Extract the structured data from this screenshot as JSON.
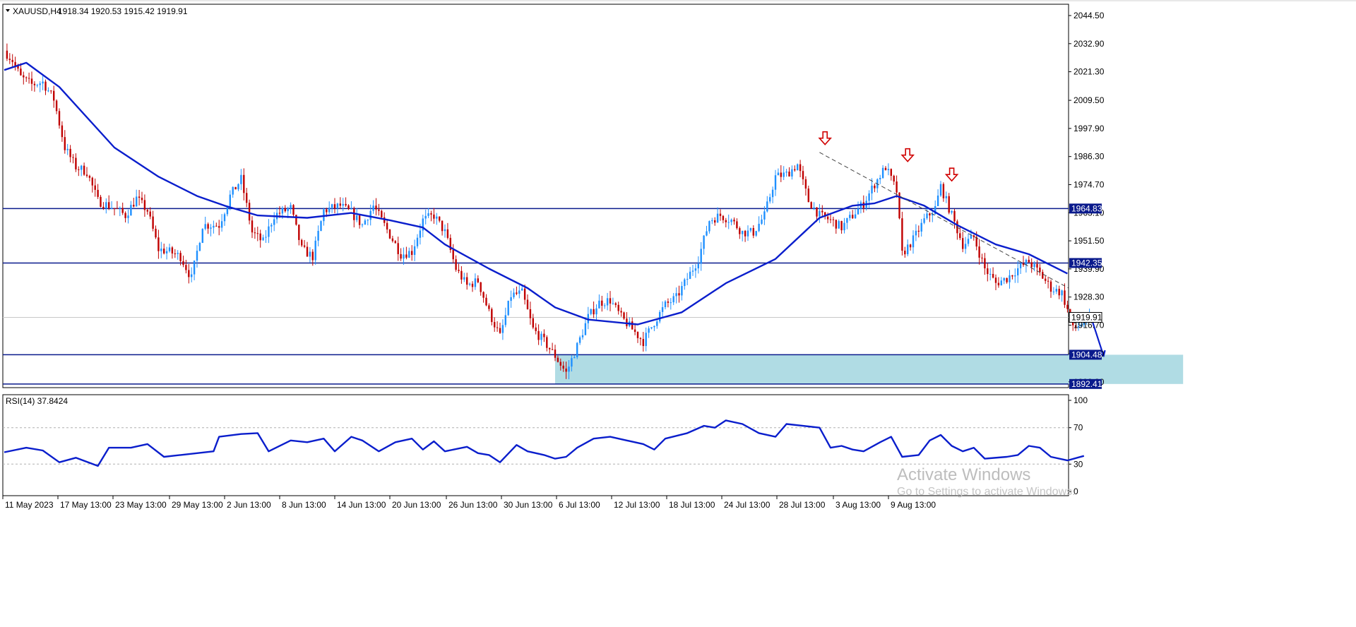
{
  "header": {
    "symbol": "XAUUSD,H4",
    "ohlc": "1918.34 1920.53 1915.42 1919.91"
  },
  "indicator": {
    "label": "RSI(14) 37.8424"
  },
  "watermark": {
    "line1": "Activate Windows",
    "line2": "Go to Settings to activate Windows."
  },
  "colors": {
    "bull": "#1e90ff",
    "bear": "#c00000",
    "ma": "#0a1ecc",
    "level": "#0a1a8c",
    "zone": "#b0dce4",
    "arrow": "#d00000",
    "trend": "#444444"
  },
  "chart_data": [
    {
      "type": "candlestick",
      "symbol": "XAUUSD",
      "timeframe": "H4",
      "last_price": 1919.91,
      "y_ticks": [
        2044.5,
        2032.9,
        2021.3,
        2009.5,
        1997.9,
        1986.3,
        1974.7,
        1963.1,
        1951.5,
        1939.9,
        1928.3,
        1916.7,
        1904.9,
        1893.3
      ],
      "x_ticks": [
        "11 May 2023",
        "17 May 13:00",
        "23 May 13:00",
        "29 May 13:00",
        "2 Jun 13:00",
        "8 Jun 13:00",
        "14 Jun 13:00",
        "20 Jun 13:00",
        "26 Jun 13:00",
        "30 Jun 13:00",
        "6 Jul 13:00",
        "12 Jul 13:00",
        "18 Jul 13:00",
        "24 Jul 13:00",
        "28 Jul 13:00",
        "3 Aug 13:00",
        "9 Aug 13:00"
      ],
      "price_path": [
        [
          0,
          2030
        ],
        [
          3,
          2026
        ],
        [
          6,
          2019
        ],
        [
          10,
          2016
        ],
        [
          14,
          2017
        ],
        [
          18,
          2010
        ],
        [
          22,
          1990
        ],
        [
          26,
          1982
        ],
        [
          30,
          1980
        ],
        [
          34,
          1968
        ],
        [
          40,
          1965
        ],
        [
          44,
          1962
        ],
        [
          48,
          1969
        ],
        [
          52,
          1964
        ],
        [
          56,
          1948
        ],
        [
          60,
          1947
        ],
        [
          64,
          1945
        ],
        [
          68,
          1936
        ],
        [
          72,
          1958
        ],
        [
          78,
          1958
        ],
        [
          82,
          1970
        ],
        [
          86,
          1977
        ],
        [
          90,
          1955
        ],
        [
          94,
          1951
        ],
        [
          98,
          1962
        ],
        [
          104,
          1965
        ],
        [
          108,
          1948
        ],
        [
          112,
          1945
        ],
        [
          116,
          1964
        ],
        [
          122,
          1966
        ],
        [
          126,
          1963
        ],
        [
          130,
          1958
        ],
        [
          134,
          1966
        ],
        [
          138,
          1958
        ],
        [
          144,
          1946
        ],
        [
          148,
          1947
        ],
        [
          152,
          1960
        ],
        [
          156,
          1962
        ],
        [
          160,
          1955
        ],
        [
          164,
          1940
        ],
        [
          168,
          1933
        ],
        [
          172,
          1935
        ],
        [
          176,
          1922
        ],
        [
          180,
          1912
        ],
        [
          184,
          1929
        ],
        [
          188,
          1930
        ],
        [
          192,
          1915
        ],
        [
          196,
          1910
        ],
        [
          200,
          1904
        ],
        [
          204,
          1897
        ],
        [
          208,
          1908
        ],
        [
          212,
          1920
        ],
        [
          216,
          1926
        ],
        [
          220,
          1927
        ],
        [
          224,
          1920
        ],
        [
          228,
          1915
        ],
        [
          232,
          1910
        ],
        [
          236,
          1918
        ],
        [
          240,
          1925
        ],
        [
          244,
          1928
        ],
        [
          248,
          1936
        ],
        [
          252,
          1944
        ],
        [
          256,
          1960
        ],
        [
          260,
          1962
        ],
        [
          264,
          1960
        ],
        [
          268,
          1955
        ],
        [
          272,
          1955
        ],
        [
          276,
          1962
        ],
        [
          280,
          1978
        ],
        [
          284,
          1979
        ],
        [
          288,
          1983
        ],
        [
          292,
          1968
        ],
        [
          296,
          1962
        ],
        [
          300,
          1960
        ],
        [
          304,
          1957
        ],
        [
          308,
          1962
        ],
        [
          312,
          1967
        ],
        [
          316,
          1975
        ],
        [
          320,
          1982
        ],
        [
          324,
          1972
        ],
        [
          326,
          1946
        ],
        [
          330,
          1952
        ],
        [
          334,
          1960
        ],
        [
          338,
          1965
        ],
        [
          340,
          1974
        ],
        [
          344,
          1962
        ],
        [
          348,
          1950
        ],
        [
          352,
          1953
        ],
        [
          356,
          1940
        ],
        [
          360,
          1934
        ],
        [
          364,
          1936
        ],
        [
          368,
          1940
        ],
        [
          372,
          1943
        ],
        [
          376,
          1938
        ],
        [
          380,
          1932
        ],
        [
          384,
          1930
        ],
        [
          386,
          1923
        ],
        [
          388,
          1915
        ],
        [
          392,
          1918
        ],
        [
          394,
          1920
        ]
      ],
      "moving_average": [
        [
          0,
          2022
        ],
        [
          8,
          2025
        ],
        [
          20,
          2015
        ],
        [
          40,
          1990
        ],
        [
          56,
          1978
        ],
        [
          70,
          1970
        ],
        [
          80,
          1966
        ],
        [
          92,
          1962
        ],
        [
          110,
          1961
        ],
        [
          126,
          1963
        ],
        [
          140,
          1960
        ],
        [
          152,
          1957
        ],
        [
          160,
          1950
        ],
        [
          176,
          1940
        ],
        [
          190,
          1932
        ],
        [
          200,
          1924
        ],
        [
          212,
          1919
        ],
        [
          230,
          1917
        ],
        [
          246,
          1922
        ],
        [
          262,
          1934
        ],
        [
          280,
          1944
        ],
        [
          296,
          1961
        ],
        [
          308,
          1966
        ],
        [
          316,
          1967
        ],
        [
          324,
          1970
        ],
        [
          334,
          1966
        ],
        [
          346,
          1958
        ],
        [
          360,
          1950
        ],
        [
          372,
          1946
        ],
        [
          386,
          1938
        ]
      ],
      "levels": [
        1964.83,
        1942.35,
        1904.48,
        1892.41
      ],
      "current_price_line": 1919.91,
      "support_zone": {
        "from_index": 200,
        "to_index": 428,
        "low": 1892.41,
        "high": 1904.48
      },
      "trendline": [
        {
          "index": 296,
          "price": 1988
        },
        {
          "index": 455,
          "price": 1932
        }
      ],
      "red_arrows": [
        {
          "index": 298,
          "price": 1993
        },
        {
          "index": 328,
          "price": 1986
        },
        {
          "index": 344,
          "price": 1978
        }
      ],
      "projection": [
        [
          394,
          1922
        ],
        [
          400,
          1904
        ]
      ]
    },
    {
      "type": "line",
      "name": "RSI(14)",
      "value": 37.8424,
      "y_ticks": [
        100,
        70,
        30,
        0
      ],
      "levels": [
        70,
        30
      ],
      "ylim": [
        0,
        100
      ],
      "path": [
        [
          0,
          43
        ],
        [
          8,
          48
        ],
        [
          14,
          45
        ],
        [
          20,
          32
        ],
        [
          26,
          37
        ],
        [
          34,
          28
        ],
        [
          38,
          48
        ],
        [
          46,
          48
        ],
        [
          52,
          52
        ],
        [
          58,
          38
        ],
        [
          64,
          40
        ],
        [
          70,
          42
        ],
        [
          76,
          44
        ],
        [
          78,
          60
        ],
        [
          86,
          63
        ],
        [
          92,
          64
        ],
        [
          96,
          44
        ],
        [
          104,
          56
        ],
        [
          110,
          54
        ],
        [
          116,
          58
        ],
        [
          120,
          44
        ],
        [
          126,
          60
        ],
        [
          130,
          56
        ],
        [
          136,
          44
        ],
        [
          142,
          54
        ],
        [
          148,
          58
        ],
        [
          152,
          46
        ],
        [
          156,
          55
        ],
        [
          160,
          44
        ],
        [
          168,
          49
        ],
        [
          172,
          42
        ],
        [
          176,
          40
        ],
        [
          180,
          32
        ],
        [
          186,
          51
        ],
        [
          190,
          44
        ],
        [
          196,
          40
        ],
        [
          200,
          36
        ],
        [
          204,
          38
        ],
        [
          208,
          48
        ],
        [
          214,
          58
        ],
        [
          220,
          60
        ],
        [
          226,
          56
        ],
        [
          232,
          52
        ],
        [
          236,
          46
        ],
        [
          240,
          58
        ],
        [
          248,
          64
        ],
        [
          254,
          72
        ],
        [
          258,
          70
        ],
        [
          262,
          78
        ],
        [
          268,
          74
        ],
        [
          274,
          64
        ],
        [
          280,
          60
        ],
        [
          284,
          74
        ],
        [
          290,
          72
        ],
        [
          296,
          70
        ],
        [
          300,
          48
        ],
        [
          304,
          50
        ],
        [
          308,
          46
        ],
        [
          312,
          44
        ],
        [
          318,
          54
        ],
        [
          322,
          60
        ],
        [
          326,
          38
        ],
        [
          332,
          40
        ],
        [
          336,
          56
        ],
        [
          340,
          62
        ],
        [
          344,
          50
        ],
        [
          348,
          44
        ],
        [
          352,
          48
        ],
        [
          356,
          36
        ],
        [
          364,
          38
        ],
        [
          368,
          40
        ],
        [
          372,
          50
        ],
        [
          376,
          48
        ],
        [
          380,
          38
        ],
        [
          386,
          34
        ],
        [
          392,
          39
        ]
      ]
    }
  ]
}
